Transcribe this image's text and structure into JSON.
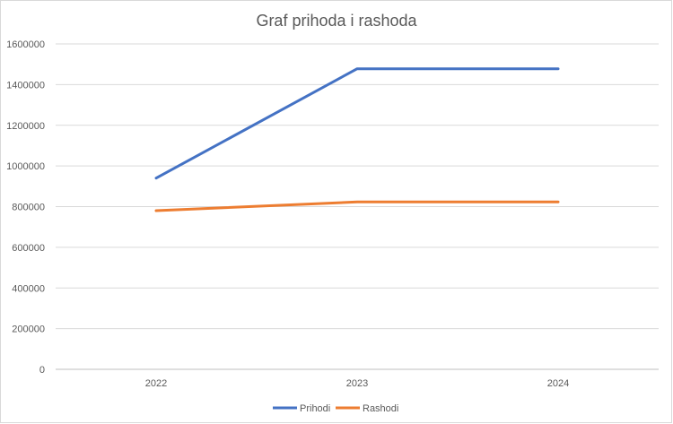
{
  "chart_data": {
    "type": "line",
    "title": "Graf prihoda i rashoda",
    "categories": [
      "2022",
      "2023",
      "2024"
    ],
    "series": [
      {
        "name": "Prihodi",
        "values": [
          940000,
          1478000,
          1478000
        ],
        "color": "#4472C4"
      },
      {
        "name": "Rashodi",
        "values": [
          780000,
          823000,
          823000
        ],
        "color": "#ED7D31"
      }
    ],
    "ylim": [
      0,
      1600000
    ],
    "yticks": [
      "0",
      "200000",
      "400000",
      "600000",
      "800000",
      "1000000",
      "1200000",
      "1400000",
      "1600000"
    ],
    "grid": true,
    "legend_position": "bottom"
  }
}
